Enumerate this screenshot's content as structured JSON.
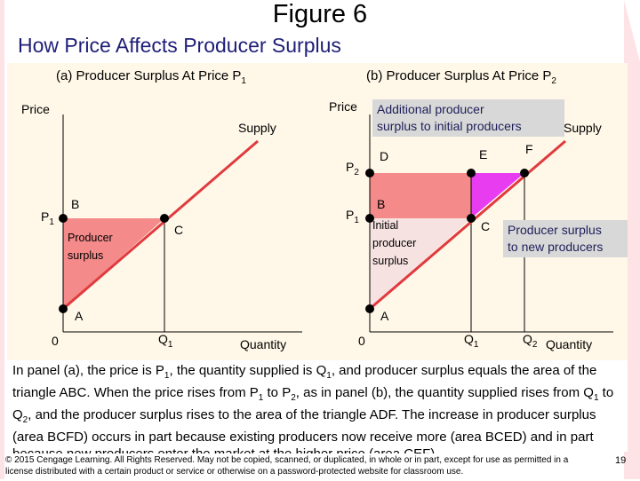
{
  "figure_title": "Figure 6",
  "subtitle": "How Price Affects Producer Surplus",
  "colors": {
    "accent": "#e03a3e",
    "area_light": "#f48a8a",
    "area_pale": "#f7e2e2",
    "area_magenta": "#e83cf0",
    "panel_bg": "#fff8e8",
    "band": "#fde3e6"
  },
  "panel_a": {
    "title": "(a) Producer Surplus At Price P",
    "title_sub": "1",
    "y_axis": "Price",
    "x_axis": "Quantity",
    "curve": "Supply",
    "origin": "0",
    "p1": "P",
    "p1_sub": "1",
    "q1": "Q",
    "q1_sub": "1",
    "point_a": "A",
    "point_b": "B",
    "point_c": "C",
    "area_label_1": "Producer",
    "area_label_2": "surplus"
  },
  "panel_b": {
    "title": "(b) Producer Surplus At Price P",
    "title_sub": "2",
    "y_axis": "Price",
    "x_axis": "Quantity",
    "curve": "Supply",
    "origin": "0",
    "p1": "P",
    "p1_sub": "1",
    "p2": "P",
    "p2_sub": "2",
    "q1": "Q",
    "q1_sub": "1",
    "q2": "Q",
    "q2_sub": "2",
    "point_a": "A",
    "point_b": "B",
    "point_c": "C",
    "point_d": "D",
    "point_e": "E",
    "point_f": "F",
    "area_label_1": "Initial",
    "area_label_2": "producer",
    "area_label_3": "surplus",
    "callout_1_line1": "Additional producer",
    "callout_1_line2": "surplus to initial producers",
    "callout_2_line1": "Producer surplus",
    "callout_2_line2": "to new producers"
  },
  "caption": {
    "t1": "In panel (a), the price is P",
    "s1": "1",
    "t2": ", the quantity supplied is Q",
    "s2": "1",
    "t3": ", and producer surplus equals the area of the triangle ABC. When the price rises from P",
    "s3": "1",
    "t4": " to P",
    "s4": "2",
    "t5": ", as in panel (b), the quantity supplied rises from Q",
    "s5": "1",
    "t6": " to Q",
    "s6": "2",
    "t7": ", and the producer surplus rises to the area of the triangle ADF. The increase in producer surplus (area BCFD) occurs in part because existing producers now receive more (area BCED) and in part because new producers enter the market at the higher price (area CEF)."
  },
  "footer": "© 2015 Cengage Learning. All Rights Reserved. May not be copied, scanned, or duplicated, in whole or in part, except for use as permitted in a license distributed with a certain product or service or otherwise on a password-protected website for classroom use.",
  "page_number": "19"
}
